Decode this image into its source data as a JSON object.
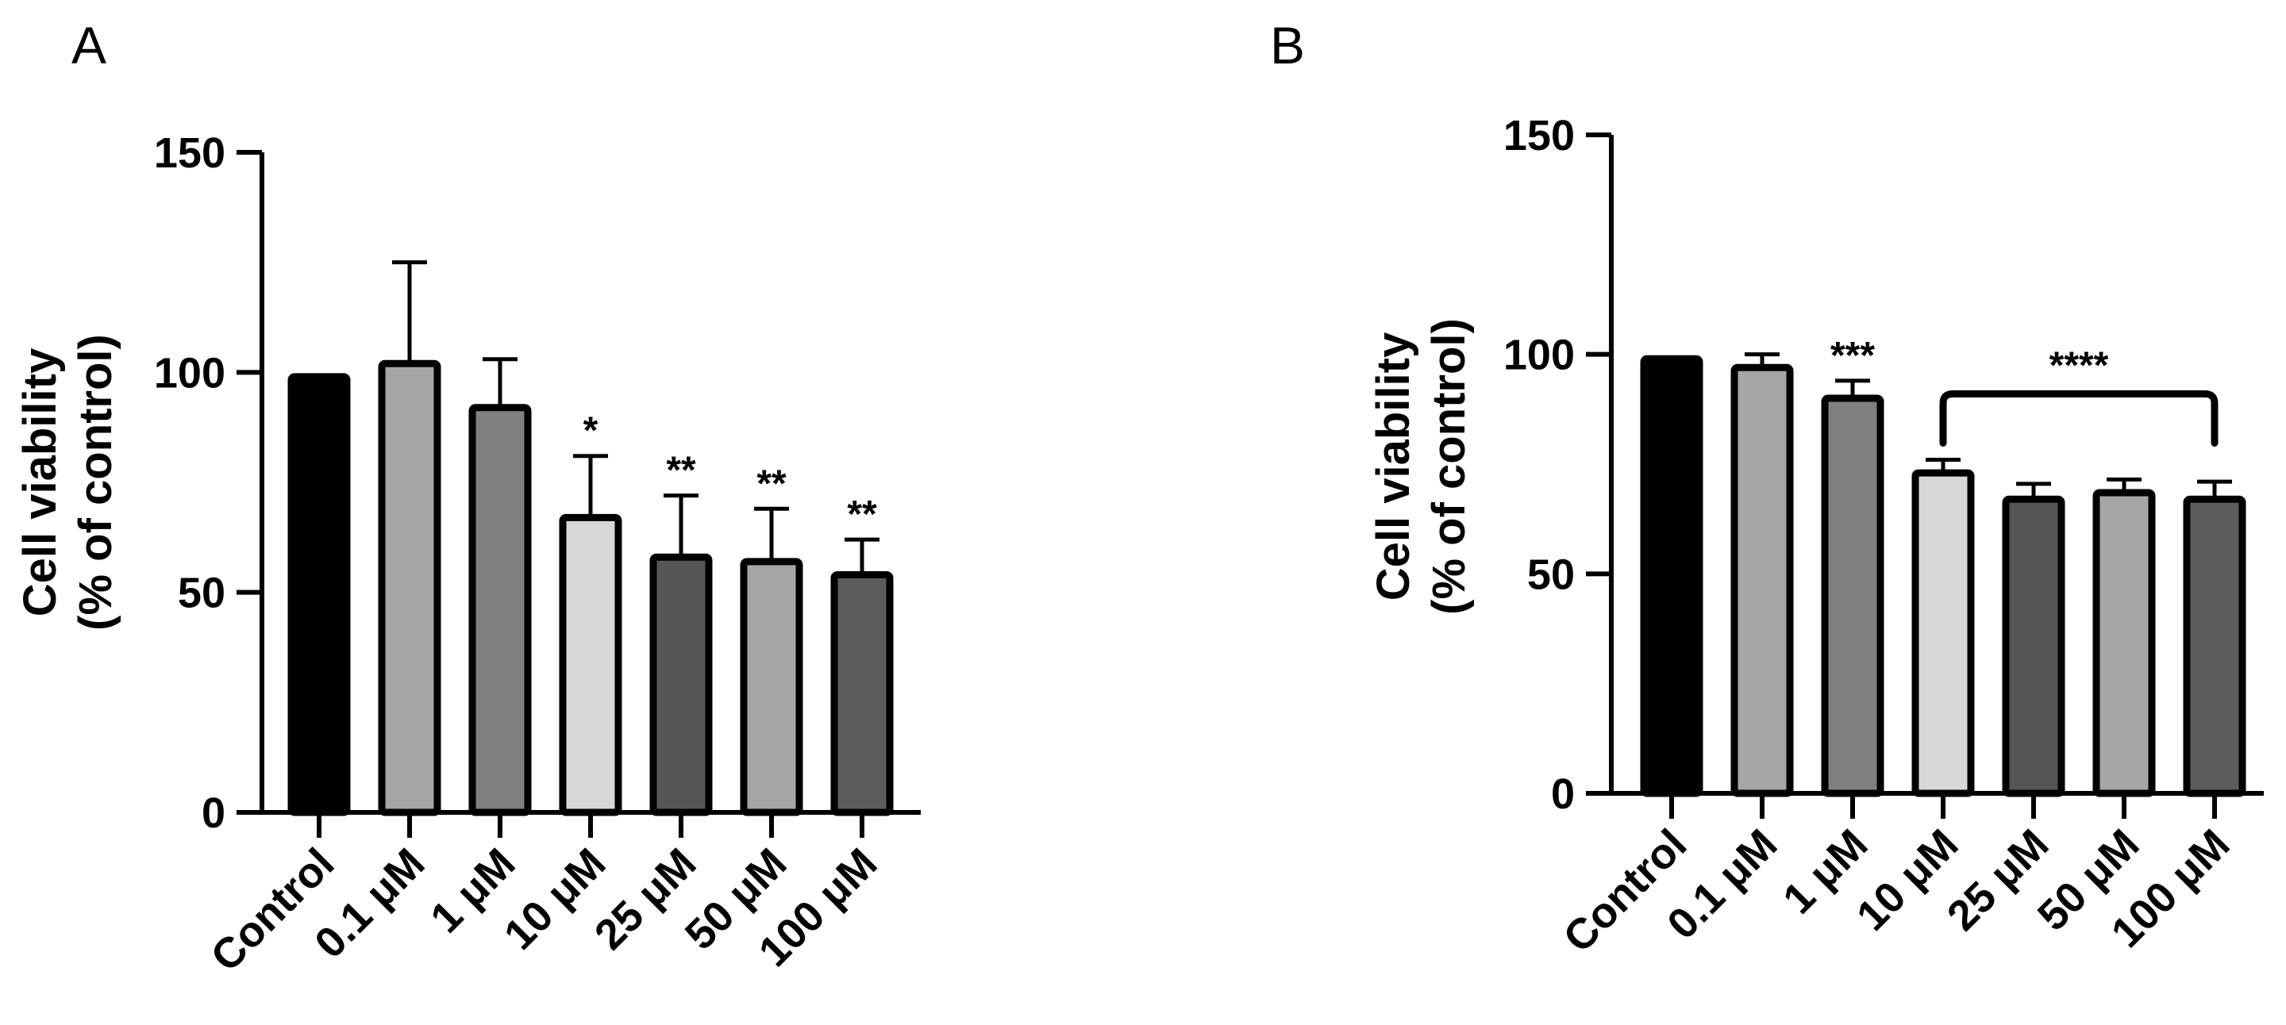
{
  "chart_data": [
    {
      "panel_label": "A",
      "type": "bar",
      "categories": [
        "Control",
        "0.1 μM",
        "1 μM",
        "10 μM",
        "25 μM",
        "50 μM",
        "100 μM"
      ],
      "values": [
        99,
        102,
        92,
        67,
        58,
        57,
        54
      ],
      "error_upper": [
        99,
        125,
        103,
        81,
        72,
        69,
        62
      ],
      "significance": [
        "",
        "",
        "",
        "*",
        "**",
        "**",
        "**"
      ],
      "bar_colors": [
        "#000000",
        "#a6a6a8",
        "#7f7f7f",
        "#d8d8d8",
        "#555555",
        "#a6a6a8",
        "#5c5c5c"
      ],
      "ylabel": [
        "Cell viability",
        "(% of control)"
      ],
      "ylim": [
        0,
        150
      ],
      "yticks": [
        "0",
        "50",
        "100",
        "150"
      ],
      "grid": false,
      "legend": "none"
    },
    {
      "panel_label": "B",
      "type": "bar",
      "categories": [
        "Control",
        "0.1 μM",
        "1 μM",
        "10 μM",
        "25 μM",
        "50 μM",
        "100 μM"
      ],
      "values": [
        99,
        97,
        90,
        73,
        67,
        68.5,
        67
      ],
      "error_upper": [
        99,
        100,
        94,
        76,
        70.5,
        71.5,
        71
      ],
      "significance": [
        "",
        "",
        "***",
        "",
        "",
        "",
        ""
      ],
      "bracket": {
        "from_index": 3,
        "to_index": 6,
        "value": 91,
        "label": "****"
      },
      "bar_colors": [
        "#000000",
        "#a6a6a8",
        "#7f7f7f",
        "#d8d8d8",
        "#555555",
        "#a6a6a8",
        "#5c5c5c"
      ],
      "ylabel": [
        "Cell viability",
        "(% of control)"
      ],
      "ylim": [
        0,
        150
      ],
      "yticks": [
        "0",
        "50",
        "100",
        "150"
      ],
      "grid": false,
      "legend": "none"
    }
  ]
}
